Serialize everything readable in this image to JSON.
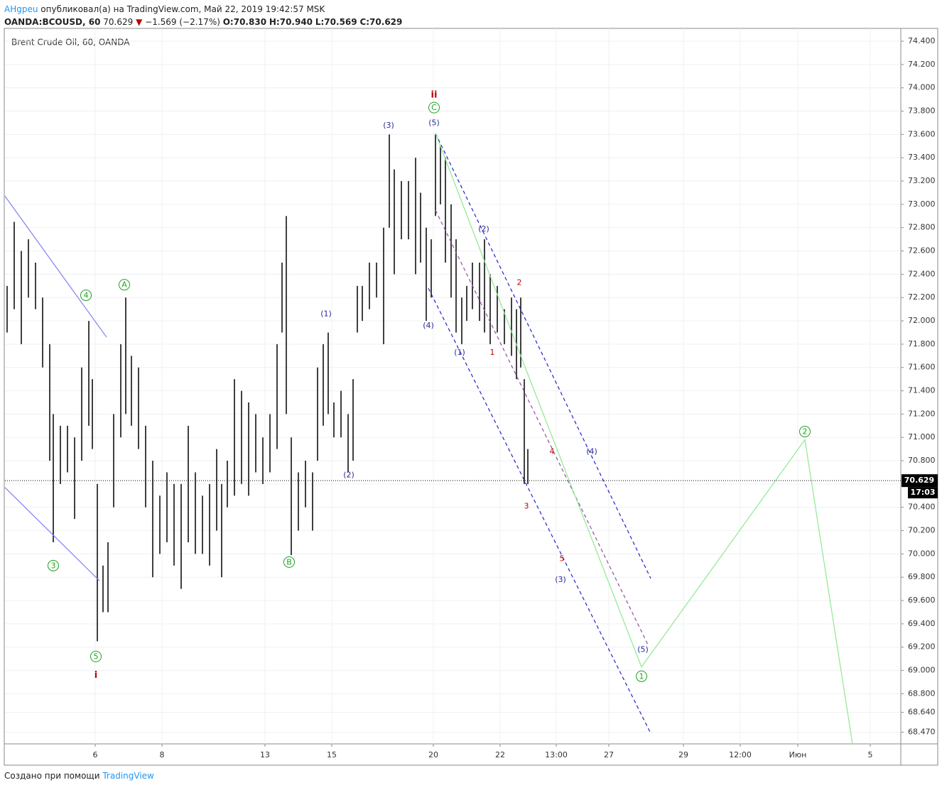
{
  "header": {
    "author": "AHgpeu",
    "published": "опубликовал(а) на TradingView.com, Май 22, 2019 19:42:57 MSK",
    "symbol": "OANDA:BCOUSD, 60",
    "price": "70.629",
    "change": "−1.569 (−2.17%)",
    "open": "O:70.830",
    "high": "H:70.940",
    "low": "L:70.569",
    "close": "C:70.629"
  },
  "footer": {
    "text": "Создано при помощи",
    "brand": "TradingView"
  },
  "chart_data": {
    "type": "ohlc",
    "title": "Brent Crude Oil, 60, OANDA",
    "color": "#000000",
    "x": [
      1.5,
      6.5,
      11.5,
      16.5,
      21.5,
      26.5,
      31.5,
      34,
      39,
      44,
      49,
      54,
      59,
      61.5,
      65,
      69,
      72.5,
      76.5,
      81.5,
      85,
      89,
      94,
      99,
      104,
      109,
      114,
      119,
      124,
      129,
      134,
      139,
      144,
      149,
      152.5,
      156.5,
      161.5,
      166.5,
      171.5,
      176.5,
      181.5,
      186.5,
      191.5,
      195,
      198,
      201.5,
      206.5,
      211.5,
      216.5,
      220,
      224,
      227.5,
      231.5,
      236.5,
      241.5,
      245,
      248,
      251.5,
      256.5,
      261.5,
      266.5,
      270.5,
      274,
      279,
      284,
      289,
      292.5,
      296.5,
      300,
      303,
      306.5,
      310,
      314,
      317.5,
      321.5,
      325,
      329,
      334,
      337.5,
      341.5,
      346.5,
      351.5,
      356.5,
      360,
      363,
      365.5,
      368
    ],
    "high": [
      72.3,
      72.85,
      72.6,
      72.7,
      72.5,
      72.2,
      71.8,
      71.2,
      71.1,
      71.1,
      71.0,
      71.6,
      72.0,
      71.5,
      70.6,
      69.9,
      70.1,
      71.2,
      71.8,
      72.2,
      71.7,
      71.6,
      71.1,
      70.8,
      70.5,
      70.7,
      70.6,
      70.6,
      71.1,
      70.7,
      70.5,
      70.6,
      70.9,
      70.6,
      70.8,
      71.5,
      71.4,
      71.3,
      71.2,
      71.0,
      71.2,
      71.8,
      72.5,
      72.9,
      71.0,
      70.7,
      70.8,
      70.7,
      71.6,
      71.8,
      71.9,
      71.3,
      71.4,
      71.2,
      71.5,
      72.3,
      72.3,
      72.5,
      72.5,
      72.8,
      73.6,
      73.3,
      73.2,
      73.2,
      73.4,
      73.1,
      72.8,
      72.7,
      73.6,
      73.5,
      73.4,
      73.0,
      72.7,
      72.2,
      72.3,
      72.5,
      72.5,
      72.7,
      72.4,
      72.3,
      72.1,
      72.2,
      72.1,
      72.2,
      71.5,
      70.9
    ],
    "low": [
      71.9,
      72.1,
      71.8,
      72.2,
      72.1,
      71.6,
      70.8,
      70.1,
      70.6,
      70.7,
      70.3,
      70.8,
      71.1,
      70.9,
      69.25,
      69.5,
      69.5,
      70.4,
      71.0,
      71.2,
      71.1,
      70.9,
      70.4,
      69.8,
      70.0,
      70.1,
      69.9,
      69.7,
      70.1,
      70.0,
      70.0,
      69.9,
      70.2,
      69.8,
      70.4,
      70.5,
      70.6,
      70.5,
      70.7,
      70.6,
      70.7,
      70.9,
      71.9,
      71.2,
      69.99,
      70.2,
      70.4,
      70.2,
      70.8,
      71.1,
      71.2,
      71.0,
      71.0,
      70.7,
      70.8,
      71.9,
      72.0,
      72.1,
      72.2,
      71.8,
      72.8,
      72.4,
      72.7,
      72.7,
      72.4,
      72.5,
      72.0,
      72.2,
      72.9,
      73.0,
      72.5,
      72.2,
      71.9,
      71.8,
      72.0,
      72.1,
      72.0,
      71.9,
      71.8,
      71.9,
      71.8,
      71.7,
      71.5,
      71.6,
      70.6,
      70.6
    ],
    "xlim": [
      0,
      630.5
    ],
    "ylim": [
      68.37,
      74.51
    ],
    "xticks": [
      {
        "value": 63.5,
        "label": "6"
      },
      {
        "value": 110.5,
        "label": "8"
      },
      {
        "value": 183,
        "label": "13"
      },
      {
        "value": 230,
        "label": "15"
      },
      {
        "value": 301.5,
        "label": "20"
      },
      {
        "value": 348.5,
        "label": "22"
      },
      {
        "value": 388,
        "label": "13:00"
      },
      {
        "value": 425,
        "label": "27"
      },
      {
        "value": 477.5,
        "label": "29"
      },
      {
        "value": 517.5,
        "label": "12:00"
      },
      {
        "value": 558,
        "label": "Июн"
      },
      {
        "value": 609,
        "label": "5"
      }
    ],
    "yticks": [
      {
        "value": 68.47,
        "label": "68.470"
      },
      {
        "value": 68.64,
        "label": "68.640"
      },
      {
        "value": 68.8,
        "label": "68.800"
      },
      {
        "value": 69.0,
        "label": "69.000"
      },
      {
        "value": 69.2,
        "label": "69.200"
      },
      {
        "value": 69.4,
        "label": "69.400"
      },
      {
        "value": 69.6,
        "label": "69.600"
      },
      {
        "value": 69.8,
        "label": "69.800"
      },
      {
        "value": 70.0,
        "label": "70.000"
      },
      {
        "value": 70.2,
        "label": "70.200"
      },
      {
        "value": 70.4,
        "label": "70.400"
      },
      {
        "value": 70.6,
        "label": "70.600"
      },
      {
        "value": 70.8,
        "label": "70.800"
      },
      {
        "value": 71.0,
        "label": "71.000"
      },
      {
        "value": 71.2,
        "label": "71.200"
      },
      {
        "value": 71.4,
        "label": "71.400"
      },
      {
        "value": 71.6,
        "label": "71.600"
      },
      {
        "value": 71.8,
        "label": "71.800"
      },
      {
        "value": 72.0,
        "label": "72.000"
      },
      {
        "value": 72.2,
        "label": "72.200"
      },
      {
        "value": 72.4,
        "label": "72.400"
      },
      {
        "value": 72.6,
        "label": "72.600"
      },
      {
        "value": 72.8,
        "label": "72.800"
      },
      {
        "value": 73.0,
        "label": "73.000"
      },
      {
        "value": 73.2,
        "label": "73.200"
      },
      {
        "value": 73.4,
        "label": "73.400"
      },
      {
        "value": 73.6,
        "label": "73.600"
      },
      {
        "value": 73.8,
        "label": "73.800"
      },
      {
        "value": 74.0,
        "label": "74.000"
      },
      {
        "value": 74.2,
        "label": "74.200"
      },
      {
        "value": 74.4,
        "label": "74.400"
      }
    ],
    "grid": true,
    "last": {
      "value": 70.629,
      "label": "70.629",
      "timer": "17:03"
    },
    "lines": [
      {
        "color": "#8080f0",
        "dash": false,
        "x": [
          0,
          71.5
        ],
        "y": [
          73.07,
          71.86
        ]
      },
      {
        "color": "#8080f0",
        "dash": false,
        "x": [
          0,
          66.5
        ],
        "y": [
          70.57,
          69.77
        ]
      },
      {
        "color": "#2222cc",
        "dash": true,
        "x": [
          303,
          454.5
        ],
        "y": [
          73.61,
          69.79
        ]
      },
      {
        "color": "#2222cc",
        "dash": true,
        "x": [
          298,
          454.5
        ],
        "y": [
          72.28,
          68.46
        ]
      },
      {
        "color": "#9050a0",
        "dash": true,
        "x": [
          303,
          453
        ],
        "y": [
          72.95,
          69.21
        ]
      },
      {
        "color": "#90e890",
        "dash": false,
        "x": [
          303,
          366.5,
          448,
          563,
          596.5
        ],
        "y": [
          73.61,
          71.59,
          69.03,
          70.98,
          68.37
        ]
      }
    ],
    "annotations": [
      {
        "text": "(3)",
        "x": 270,
        "y": 73.68,
        "color": "#2a2a9a",
        "circle": false
      },
      {
        "text": "(5)",
        "x": 302,
        "y": 73.7,
        "color": "#2a2a9a",
        "circle": false
      },
      {
        "text": "ii",
        "x": 302,
        "y": 73.94,
        "color": "#c00000",
        "circle": false
      },
      {
        "text": "C",
        "x": 302,
        "y": 73.83,
        "color": "#20a020",
        "circle": true
      },
      {
        "text": "(2)",
        "x": 337,
        "y": 72.79,
        "color": "#2a2a9a",
        "circle": false
      },
      {
        "text": "2",
        "x": 362,
        "y": 72.33,
        "color": "#c00000",
        "circle": false
      },
      {
        "text": "(4)",
        "x": 298,
        "y": 71.96,
        "color": "#2a2a9a",
        "circle": false
      },
      {
        "text": "(1)",
        "x": 320,
        "y": 71.73,
        "color": "#2a2a9a",
        "circle": false
      },
      {
        "text": "1",
        "x": 343,
        "y": 71.73,
        "color": "#c00000",
        "circle": false
      },
      {
        "text": "(1)",
        "x": 226,
        "y": 72.06,
        "color": "#2a2a9a",
        "circle": false
      },
      {
        "text": "(2)",
        "x": 242,
        "y": 70.68,
        "color": "#2a2a9a",
        "circle": false
      },
      {
        "text": "4",
        "x": 385,
        "y": 70.88,
        "color": "#c00000",
        "circle": false
      },
      {
        "text": "(4)",
        "x": 413,
        "y": 70.88,
        "color": "#2a2a9a",
        "circle": false
      },
      {
        "text": "3",
        "x": 367,
        "y": 70.41,
        "color": "#c00000",
        "circle": false
      },
      {
        "text": "5",
        "x": 392,
        "y": 69.96,
        "color": "#c00000",
        "circle": false
      },
      {
        "text": "(3)",
        "x": 391,
        "y": 69.78,
        "color": "#2a2a9a",
        "circle": false
      },
      {
        "text": "(5)",
        "x": 449,
        "y": 69.18,
        "color": "#2a2a9a",
        "circle": false
      },
      {
        "text": "1",
        "x": 448,
        "y": 68.95,
        "color": "#20a020",
        "circle": true
      },
      {
        "text": "2",
        "x": 563,
        "y": 71.05,
        "color": "#20a020",
        "circle": true
      },
      {
        "text": "4",
        "x": 57,
        "y": 72.22,
        "color": "#20a020",
        "circle": true
      },
      {
        "text": "A",
        "x": 84,
        "y": 72.31,
        "color": "#20a020",
        "circle": true
      },
      {
        "text": "3",
        "x": 34,
        "y": 69.9,
        "color": "#20a020",
        "circle": true
      },
      {
        "text": "B",
        "x": 200,
        "y": 69.93,
        "color": "#20a020",
        "circle": true
      },
      {
        "text": "5",
        "x": 64,
        "y": 69.12,
        "color": "#20a020",
        "circle": true
      },
      {
        "text": "i",
        "x": 64,
        "y": 68.96,
        "color": "#c00000",
        "circle": false
      }
    ]
  }
}
